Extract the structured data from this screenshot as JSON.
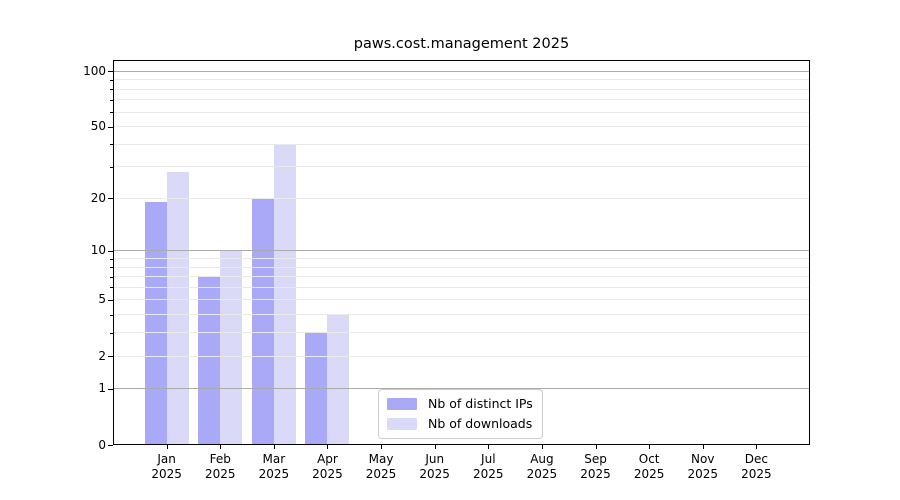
{
  "chart_data": {
    "type": "bar",
    "title": "paws.cost.management 2025",
    "categories": [
      "Jan",
      "Feb",
      "Mar",
      "Apr",
      "May",
      "Jun",
      "Jul",
      "Aug",
      "Sep",
      "Oct",
      "Nov",
      "Dec"
    ],
    "x_year_label": "2025",
    "series": [
      {
        "name": "Nb of distinct IPs",
        "color": "#a9a9f7",
        "values": [
          19,
          7,
          20,
          3,
          0,
          0,
          0,
          0,
          0,
          0,
          0,
          0
        ]
      },
      {
        "name": "Nb of downloads",
        "color": "#dadaf8",
        "values": [
          28,
          10,
          40,
          4,
          0,
          0,
          0,
          0,
          0,
          0,
          0,
          0
        ]
      }
    ],
    "y_axis": {
      "scale": "log1p",
      "tick_labels": [
        "0",
        "1",
        "2",
        "5",
        "10",
        "20",
        "50",
        "100"
      ],
      "ticks_labeled": [
        0,
        1,
        2,
        5,
        10,
        20,
        50,
        100
      ],
      "ticks_major": [
        1,
        10,
        100
      ],
      "ticks_minor_labeled": [
        2,
        5,
        20,
        50
      ],
      "ticks_minor_unlabeled": [
        3,
        4,
        6,
        7,
        8,
        9,
        30,
        40,
        60,
        70,
        80,
        90
      ],
      "ylim": [
        0,
        115
      ]
    },
    "grid": true,
    "grid_above_bars": true,
    "legend_position": "lower-center"
  },
  "colors": {
    "grid_major": "#ababab",
    "grid_minor": "#e9e9e9",
    "spine": "#000000",
    "legend_border": "#cccccc",
    "background": "#ffffff"
  }
}
